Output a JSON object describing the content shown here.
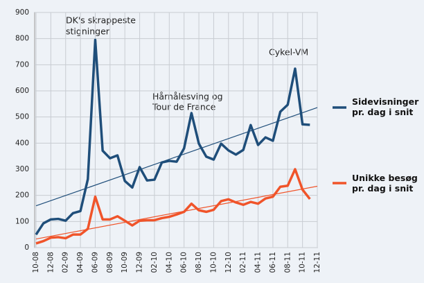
{
  "chart_data": {
    "type": "line",
    "categories": [
      "10-08",
      null,
      "12-08",
      null,
      "02-09",
      null,
      "04-09",
      null,
      "06-09",
      null,
      "08-09",
      null,
      "10-09",
      null,
      "12-09",
      null,
      "02-10",
      null,
      "04-10",
      null,
      "06-10",
      null,
      "08-10",
      null,
      "10-10",
      null,
      "12-10",
      null,
      "02-11",
      null,
      "04-11",
      null,
      "06-11",
      null,
      "08-11",
      null,
      "10-11",
      null,
      "12-11"
    ],
    "series": [
      {
        "name": "Sidevisninger pr. dag i snit",
        "color": "#1f4e7a",
        "values": [
          50,
          93,
          108,
          110,
          103,
          132,
          140,
          262,
          795,
          371,
          342,
          353,
          255,
          230,
          308,
          257,
          260,
          326,
          332,
          329,
          380,
          515,
          398,
          348,
          337,
          398,
          372,
          356,
          374,
          469,
          393,
          422,
          409,
          520,
          547,
          685,
          472,
          470,
          null
        ],
        "trend": [
          160,
          536
        ]
      },
      {
        "name": "Unikke besøg pr. dag i snit",
        "color": "#f0542a",
        "values": [
          16,
          25,
          38,
          40,
          36,
          50,
          50,
          72,
          195,
          108,
          108,
          120,
          103,
          85,
          103,
          105,
          105,
          113,
          118,
          127,
          137,
          168,
          143,
          137,
          145,
          178,
          185,
          173,
          164,
          175,
          168,
          188,
          195,
          233,
          237,
          300,
          222,
          186,
          null
        ],
        "trend": [
          33,
          235
        ]
      }
    ],
    "annotations": [
      [
        "DK's skrappeste",
        "stigninger"
      ],
      [
        "Hårnålesving og",
        "Tour de France"
      ],
      [
        "Cykel-VM"
      ]
    ],
    "ylim": [
      0,
      900
    ],
    "yticks": [
      0,
      100,
      200,
      300,
      400,
      500,
      600,
      700,
      800,
      900
    ],
    "grid": true
  }
}
